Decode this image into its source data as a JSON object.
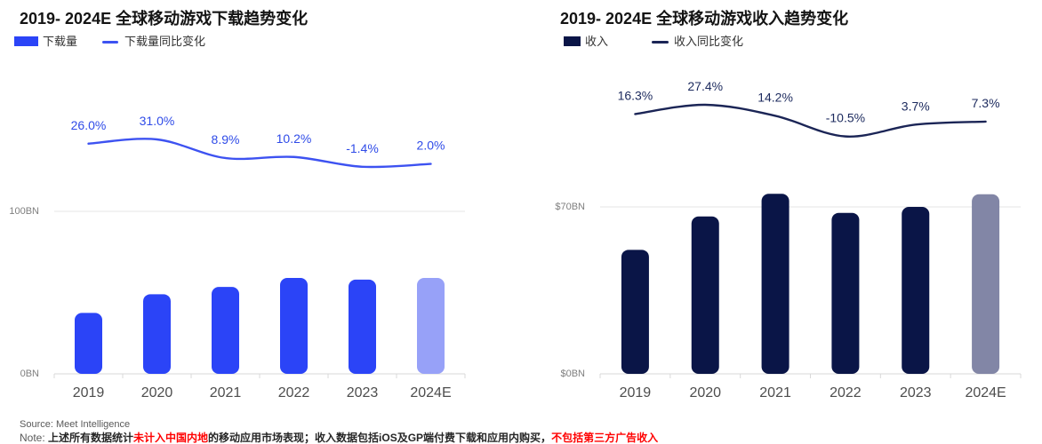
{
  "page": {
    "background": "#FFFFFF"
  },
  "charts": [
    {
      "title": "2019- 2024E 全球移动游戏下载趋势变化",
      "legend": {
        "bar_label": "下载量",
        "line_label": "下载量同比变化"
      },
      "y_axis": {
        "top_label": "100BN",
        "bottom_label": "0BN"
      },
      "colors": {
        "bar": "#2B44F7",
        "bar_estimate": "#97A1F8",
        "line": "#3D52F1",
        "label": "#2F4BE8"
      }
    },
    {
      "title": "2019- 2024E 全球移动游戏收入趋势变化",
      "legend": {
        "bar_label": "收入",
        "line_label": "收入同比变化"
      },
      "y_axis": {
        "top_label": "$70BN",
        "bottom_label": "$0BN"
      },
      "colors": {
        "bar": "#0A1547",
        "bar_estimate": "#8286A6",
        "line": "#1B2556",
        "label": "#1C2A5E"
      }
    }
  ],
  "chart_data": [
    {
      "type": "bar",
      "title": "2019- 2024E 全球移动游戏下载趋势变化",
      "categories": [
        "2019",
        "2020",
        "2021",
        "2022",
        "2023",
        "2024E"
      ],
      "series": [
        {
          "name": "下载量",
          "type": "bar",
          "unit": "BN",
          "values": [
            37.5,
            49,
            53.5,
            59,
            58,
            59
          ]
        },
        {
          "name": "下载量同比变化",
          "type": "line",
          "unit": "%",
          "values": [
            26.0,
            31.0,
            8.9,
            10.2,
            -1.4,
            2.0
          ]
        }
      ],
      "ylim": [
        0,
        100
      ],
      "y_ticks": [
        "0BN",
        "100BN"
      ],
      "grid": "top-gridline-only",
      "legend_position": "top-left",
      "last_category_is_estimate": true
    },
    {
      "type": "bar",
      "title": "2019- 2024E 全球移动游戏收入趋势变化",
      "categories": [
        "2019",
        "2020",
        "2021",
        "2022",
        "2023",
        "2024E"
      ],
      "series": [
        {
          "name": "收入",
          "type": "bar",
          "unit": "$BN",
          "values": [
            52,
            66,
            75.5,
            67.5,
            70,
            75.3
          ]
        },
        {
          "name": "收入同比变化",
          "type": "line",
          "unit": "%",
          "values": [
            16.3,
            27.4,
            14.2,
            -10.5,
            3.7,
            7.3
          ]
        }
      ],
      "ylim": [
        0,
        70
      ],
      "y_ticks": [
        "$0BN",
        "$70BN"
      ],
      "grid": "top-gridline-only",
      "legend_position": "top-left",
      "last_category_is_estimate": true
    }
  ],
  "footer": {
    "source": "Source: Meet Intelligence",
    "note_segments": [
      {
        "text": "Note: ",
        "color": "#595959",
        "bold": false
      },
      {
        "text": "上述所有数据统计",
        "color": "#262626",
        "bold": true
      },
      {
        "text": "未计入中国内地",
        "color": "#FF0000",
        "bold": true
      },
      {
        "text": "的移动应用市场表现；收入数据包括iOS及GP端付费下载和应用内购买，",
        "color": "#262626",
        "bold": true
      },
      {
        "text": "不包括第三方广告收入",
        "color": "#FF0000",
        "bold": true
      }
    ]
  }
}
